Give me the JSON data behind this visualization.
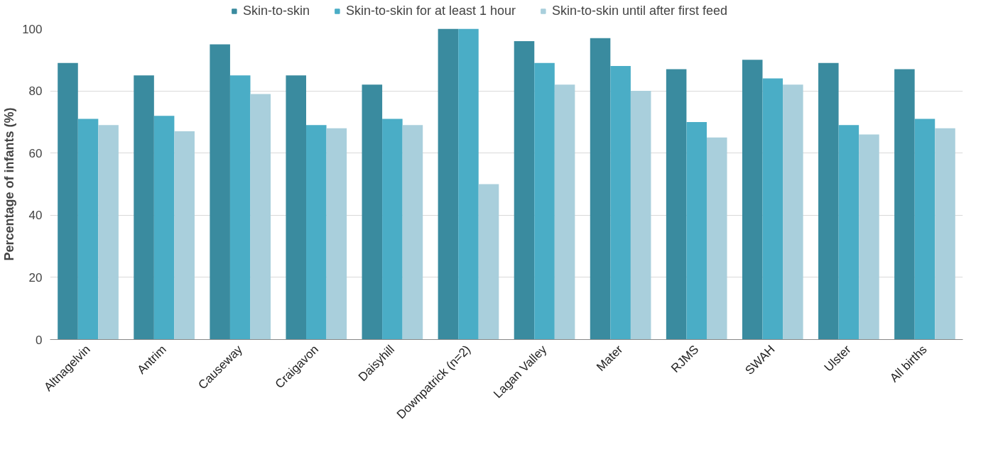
{
  "chart_data": {
    "type": "bar",
    "ylabel": "Percentage of infants (%)",
    "categories": [
      "Altnagelvin",
      "Antrim",
      "Causeway",
      "Craigavon",
      "Daisyhill",
      "Downpatrick (n=2)",
      "Lagan Valley",
      "Mater",
      "RJMS",
      "SWAH",
      "Ulster",
      "All births"
    ],
    "series": [
      {
        "name": "Skin-to-skin",
        "color": "#3a8b9f",
        "values": [
          89,
          85,
          95,
          85,
          82,
          100,
          96,
          97,
          87,
          90,
          89,
          87
        ]
      },
      {
        "name": "Skin-to-skin for at least 1 hour",
        "color": "#4aadc6",
        "values": [
          71,
          72,
          85,
          69,
          71,
          100,
          89,
          88,
          70,
          84,
          69,
          71
        ]
      },
      {
        "name": "Skin-to-skin until after first feed",
        "color": "#a9cfdc",
        "values": [
          69,
          67,
          79,
          68,
          69,
          50,
          82,
          80,
          65,
          82,
          66,
          68
        ]
      }
    ],
    "ylim": [
      0,
      100
    ],
    "yticks": [
      0,
      20,
      40,
      60,
      80,
      100
    ],
    "grid": "y",
    "legend": "top"
  }
}
